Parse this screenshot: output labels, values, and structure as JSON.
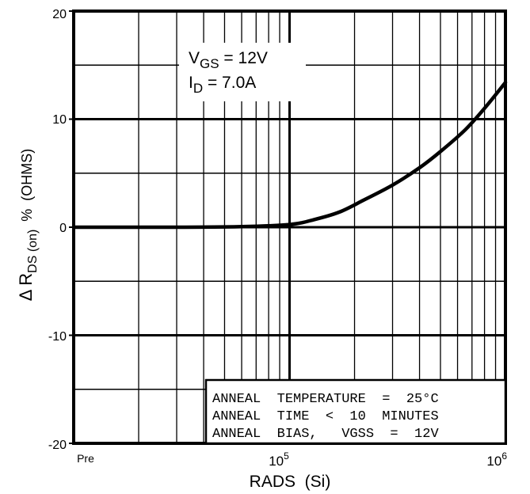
{
  "chart_data": {
    "type": "line",
    "x_scale": "log",
    "grid": true,
    "xlim": [
      10000,
      1000000
    ],
    "ylim": [
      -20,
      20
    ],
    "xlabel": "RADS  (Si)",
    "ylabel": {
      "prefix": "Δ R",
      "sub": "DS (on)",
      "unit": "%  (OHMS)"
    },
    "x_ticks": [
      {
        "label": "Pre",
        "value": 10000
      },
      {
        "label_base": "10",
        "label_exp": "5",
        "value": 100000
      },
      {
        "label_base": "10",
        "label_exp": "6",
        "value": 1000000
      }
    ],
    "y_ticks": [
      {
        "label": "20",
        "value": 20
      },
      {
        "label": "10",
        "value": 10
      },
      {
        "label": "0",
        "value": 0
      },
      {
        "label": "-10",
        "value": -10
      },
      {
        "label": "-20",
        "value": -20
      }
    ],
    "series": [
      {
        "x": [
          10000,
          30000,
          60000,
          100000,
          130000,
          170000,
          220000,
          300000,
          400000,
          500000,
          650000,
          800000,
          1000000
        ],
        "y": [
          0,
          0,
          0.05,
          0.25,
          0.7,
          1.4,
          2.5,
          3.9,
          5.5,
          7.0,
          9.0,
          11.0,
          13.4
        ]
      }
    ],
    "annotations": {
      "top": [
        {
          "base": "V",
          "sub": "GS",
          "rest": " = 12V"
        },
        {
          "base": "I",
          "sub": "D",
          "rest": " = 7.0A"
        }
      ],
      "bottom_lines": [
        "ANNEAL  TEMPERATURE  =  25°C",
        "ANNEAL  TIME  <  10  MINUTES",
        "ANNEAL  BIAS,   VGSS  =  12V"
      ]
    }
  }
}
